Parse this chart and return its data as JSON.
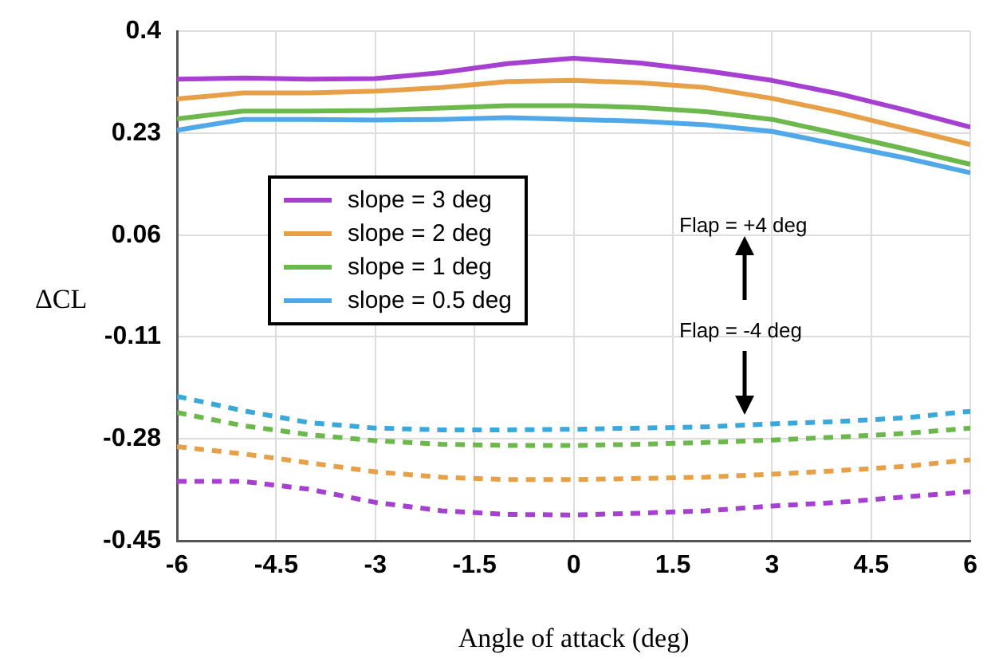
{
  "chart_data": {
    "type": "line",
    "xlabel": "Angle of attack (deg)",
    "ylabel": "ΔCL",
    "x": [
      -6,
      -5,
      -4,
      -3,
      -2,
      -1,
      0,
      1,
      2,
      3,
      4,
      5,
      6
    ],
    "series": [
      {
        "name": "slope = 3 deg",
        "color": "#a640d0",
        "values": [
          0.32,
          0.322,
          0.32,
          0.321,
          0.331,
          0.346,
          0.355,
          0.347,
          0.334,
          0.318,
          0.296,
          0.269,
          0.24
        ]
      },
      {
        "name": "slope = 2 deg",
        "color": "#e8a048",
        "values": [
          0.287,
          0.297,
          0.297,
          0.3,
          0.306,
          0.316,
          0.318,
          0.314,
          0.306,
          0.288,
          0.265,
          0.238,
          0.211
        ]
      },
      {
        "name": "slope = 1 deg",
        "color": "#6cb84c",
        "values": [
          0.254,
          0.267,
          0.267,
          0.268,
          0.272,
          0.276,
          0.276,
          0.273,
          0.266,
          0.253,
          0.229,
          0.204,
          0.178
        ]
      },
      {
        "name": "slope = 0.5 deg",
        "color": "#50a8e8",
        "values": [
          0.235,
          0.253,
          0.253,
          0.252,
          0.253,
          0.256,
          0.253,
          0.25,
          0.244,
          0.233,
          0.211,
          0.189,
          0.164
        ]
      },
      {
        "color": "#3aa8d8",
        "line_style": "dashed",
        "values": [
          -0.209,
          -0.233,
          -0.253,
          -0.262,
          -0.265,
          -0.265,
          -0.264,
          -0.262,
          -0.26,
          -0.255,
          -0.251,
          -0.245,
          -0.234
        ]
      },
      {
        "color": "#6cb84c",
        "line_style": "dashed",
        "values": [
          -0.236,
          -0.258,
          -0.273,
          -0.283,
          -0.289,
          -0.291,
          -0.291,
          -0.289,
          -0.286,
          -0.282,
          -0.277,
          -0.271,
          -0.262
        ]
      },
      {
        "color": "#e8a048",
        "line_style": "dashed",
        "values": [
          -0.293,
          -0.305,
          -0.32,
          -0.335,
          -0.344,
          -0.348,
          -0.348,
          -0.346,
          -0.344,
          -0.339,
          -0.333,
          -0.326,
          -0.315
        ]
      },
      {
        "color": "#a640d0",
        "line_style": "dashed",
        "values": [
          -0.351,
          -0.351,
          -0.364,
          -0.386,
          -0.4,
          -0.406,
          -0.407,
          -0.404,
          -0.4,
          -0.392,
          -0.386,
          -0.377,
          -0.368
        ]
      }
    ],
    "xlim": [
      -6,
      6
    ],
    "xticks": [
      -6,
      -4.5,
      -3,
      -1.5,
      0,
      1.5,
      3,
      4.5,
      6
    ],
    "ylim": [
      -0.45,
      0.4
    ],
    "yticks": [
      -0.45,
      -0.28,
      -0.11,
      0.06,
      0.23,
      0.4
    ],
    "annotations": [
      "Flap = +4 deg",
      "Flap = -4 deg"
    ],
    "grid": true,
    "legend": "top left",
    "marker": "none",
    "line_style": "solid"
  }
}
